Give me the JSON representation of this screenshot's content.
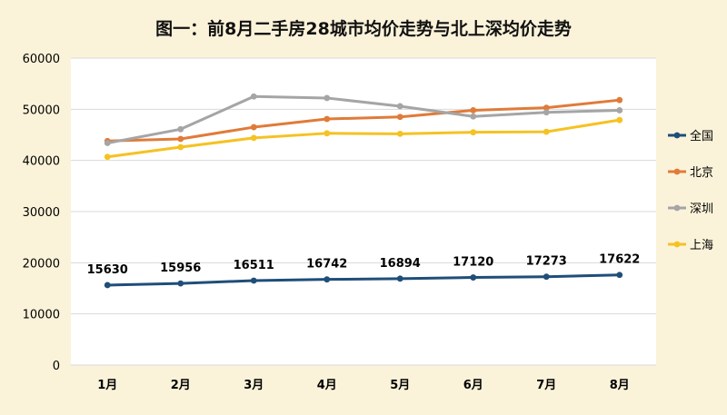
{
  "chart_data": {
    "type": "line",
    "title": "图一：前8月二手房28城市均价走势与北上深均价走势",
    "categories": [
      "1月",
      "2月",
      "3月",
      "4月",
      "5月",
      "6月",
      "7月",
      "8月"
    ],
    "ylim": [
      0,
      60000
    ],
    "yticks": [
      "0",
      "10000",
      "20000",
      "30000",
      "40000",
      "50000",
      "60000"
    ],
    "grid": "horizontal",
    "legend_position": "right",
    "series": [
      {
        "name": "全国",
        "color": "#1f4e79",
        "values": [
          15630,
          15956,
          16511,
          16742,
          16894,
          17120,
          17273,
          17622
        ],
        "data_labels": [
          "15630",
          "15956",
          "16511",
          "16742",
          "16894",
          "17120",
          "17273",
          "17622"
        ]
      },
      {
        "name": "北京",
        "color": "#e07b39",
        "values": [
          43800,
          44200,
          46500,
          48100,
          48500,
          49800,
          50300,
          51800
        ]
      },
      {
        "name": "深圳",
        "color": "#a5a5a5",
        "values": [
          43400,
          46100,
          52500,
          52200,
          50600,
          48600,
          49400,
          49800
        ]
      },
      {
        "name": "上海",
        "color": "#f5c223",
        "values": [
          40700,
          42600,
          44400,
          45300,
          45200,
          45500,
          45600,
          47900
        ]
      }
    ]
  }
}
